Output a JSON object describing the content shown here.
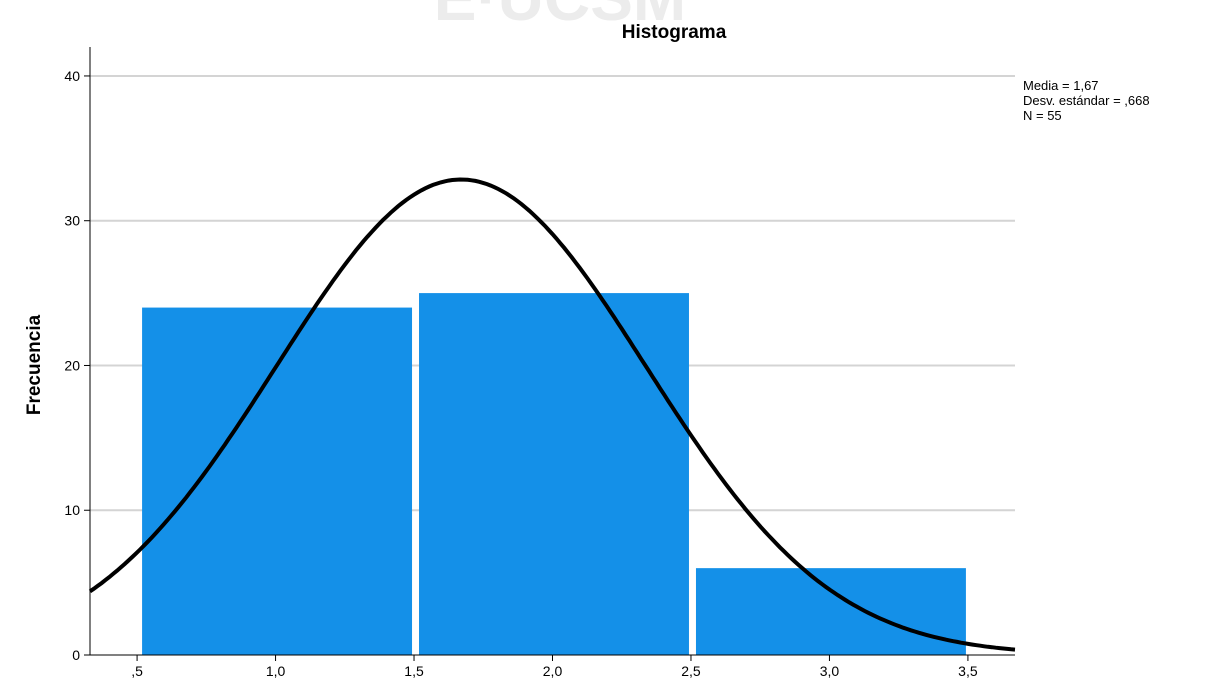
{
  "chart_data": {
    "type": "bar",
    "title": "Histograma",
    "xlabel": "",
    "ylabel": "Frecuencia",
    "categories": [
      "0,5–1,5",
      "1,5–2,5",
      "2,5–3,5"
    ],
    "bin_edges": [
      0.5,
      1.5,
      2.5,
      3.5
    ],
    "values": [
      24,
      25,
      6
    ],
    "xlim": [
      0.33,
      3.67
    ],
    "ylim": [
      0,
      42
    ],
    "x_ticks": [
      0.5,
      1.0,
      1.5,
      2.0,
      2.5,
      3.0,
      3.5
    ],
    "x_tick_labels": [
      ",5",
      "1,0",
      "1,5",
      "2,0",
      "2,5",
      "3,0",
      "3,5"
    ],
    "y_ticks": [
      0,
      10,
      20,
      30,
      40
    ],
    "y_tick_labels": [
      "0",
      "10",
      "20",
      "30",
      "40"
    ],
    "grid": true,
    "normal_curve": {
      "mean": 1.67,
      "sd": 0.668,
      "n": 55,
      "bin_width": 1
    },
    "stats": [
      "Media = 1,67",
      "Desv. estándar = ,668",
      "N = 55"
    ],
    "legend_position": "top-right",
    "colors": {
      "bar": "#1490e8",
      "curve": "#000000",
      "grid": "#d4d4d4",
      "axis": "#000000",
      "watermark": "#ececec"
    }
  }
}
